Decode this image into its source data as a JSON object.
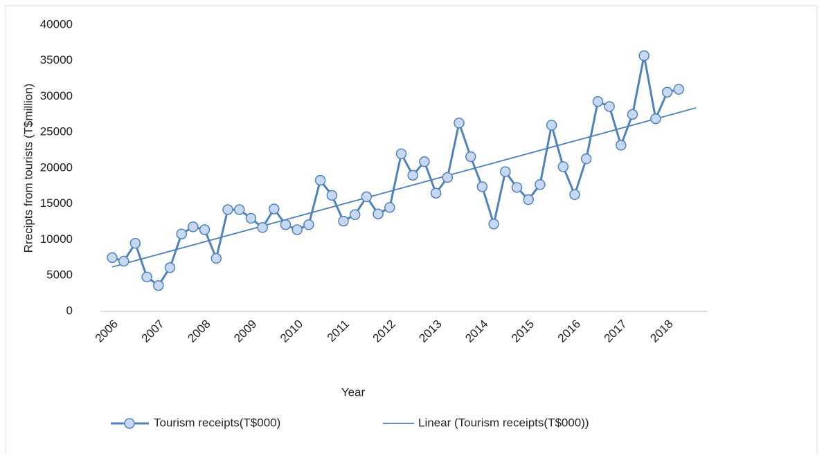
{
  "chart_data": {
    "type": "line",
    "x_label": "Year",
    "y_label": "Rrecipts from tourists (T$million)",
    "categories": [
      "2006",
      null,
      null,
      null,
      "2007",
      null,
      null,
      null,
      "2008",
      null,
      null,
      null,
      "2009",
      null,
      null,
      null,
      "2010",
      null,
      null,
      null,
      "2011",
      null,
      null,
      null,
      "2012",
      null,
      null,
      null,
      "2013",
      null,
      null,
      null,
      "2014",
      null,
      null,
      null,
      "2015",
      null,
      null,
      null,
      "2016",
      null,
      null,
      null,
      "2017",
      null,
      null,
      null,
      "2018",
      null
    ],
    "series": [
      {
        "name": "Tourism receipts(T$000)",
        "color": "#4f81bd",
        "values": [
          7500,
          7000,
          9500,
          4800,
          3600,
          6100,
          10800,
          11800,
          11400,
          7400,
          14200,
          14200,
          13000,
          11700,
          14300,
          12100,
          11400,
          12100,
          18300,
          16200,
          12600,
          13500,
          16000,
          13600,
          14500,
          22000,
          19000,
          20900,
          16500,
          18700,
          26300,
          21600,
          17400,
          12200,
          19500,
          17300,
          15600,
          17700,
          26000,
          20200,
          16300,
          21300,
          29300,
          28600,
          23200,
          27500,
          35700,
          26900,
          30600,
          31000
        ]
      }
    ],
    "trendline": {
      "name": "Linear (Tourism receipts(T$000))",
      "color": "#4a7ebb",
      "forward": 1.5
    },
    "ylim": [
      0,
      40000
    ],
    "yticks": [
      0,
      5000,
      10000,
      15000,
      20000,
      25000,
      30000,
      35000,
      40000
    ],
    "grid": false,
    "legend": "bottom"
  }
}
